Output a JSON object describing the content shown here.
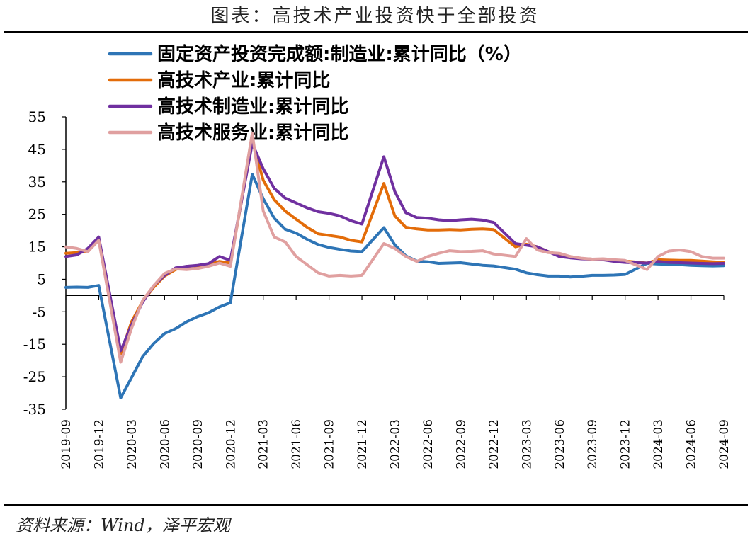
{
  "title": "图表：高技术产业投资快于全部投资",
  "source": "资料来源：Wind，泽平宏观",
  "chart_data": {
    "type": "line",
    "title": "图表：高技术产业投资快于全部投资",
    "xlabel": "",
    "ylabel": "",
    "ylim": [
      -35,
      55
    ],
    "yticks": [
      55,
      45,
      35,
      25,
      15,
      5,
      -5,
      -15,
      -25,
      -35
    ],
    "xtick_labels": [
      "2019-09",
      "2019-12",
      "2020-03",
      "2020-06",
      "2020-09",
      "2020-12",
      "2021-03",
      "2021-06",
      "2021-09",
      "2021-12",
      "2022-03",
      "2022-06",
      "2022-09",
      "2022-12",
      "2023-03",
      "2023-06",
      "2023-09",
      "2023-12",
      "2024-03",
      "2024-06",
      "2024-09"
    ],
    "legend_position": "top-left",
    "grid": false,
    "x": [
      "2019-09",
      "2019-10",
      "2019-11",
      "2019-12",
      "2020-01",
      "2020-02",
      "2020-03",
      "2020-04",
      "2020-05",
      "2020-06",
      "2020-07",
      "2020-08",
      "2020-09",
      "2020-10",
      "2020-11",
      "2020-12",
      "2021-01",
      "2021-02",
      "2021-03",
      "2021-04",
      "2021-05",
      "2021-06",
      "2021-07",
      "2021-08",
      "2021-09",
      "2021-10",
      "2021-11",
      "2021-12",
      "2022-01",
      "2022-02",
      "2022-03",
      "2022-04",
      "2022-05",
      "2022-06",
      "2022-07",
      "2022-08",
      "2022-09",
      "2022-10",
      "2022-11",
      "2022-12",
      "2023-01",
      "2023-02",
      "2023-03",
      "2023-04",
      "2023-05",
      "2023-06",
      "2023-07",
      "2023-08",
      "2023-09",
      "2023-10",
      "2023-11",
      "2023-12",
      "2024-01",
      "2024-02",
      "2024-03",
      "2024-04",
      "2024-05",
      "2024-06",
      "2024-07",
      "2024-08",
      "2024-09"
    ],
    "series": [
      {
        "name": "固定资产投资完成额:制造业:累计同比（%）",
        "color": "#2E75B6",
        "values": [
          2.5,
          2.6,
          2.5,
          3.1,
          null,
          -31.5,
          -25.2,
          -18.8,
          -14.8,
          -11.7,
          -10.2,
          -8.1,
          -6.5,
          -5.3,
          -3.5,
          -2.2,
          null,
          37.3,
          29.8,
          23.8,
          20.4,
          19.2,
          17.3,
          15.7,
          14.8,
          14.2,
          13.7,
          13.5,
          null,
          20.9,
          15.6,
          12.2,
          10.6,
          10.4,
          9.9,
          10.0,
          10.1,
          9.7,
          9.3,
          9.1,
          null,
          8.1,
          7.0,
          6.4,
          6.0,
          6.0,
          5.7,
          5.9,
          6.2,
          6.2,
          6.3,
          6.5,
          null,
          9.9,
          9.7,
          9.6,
          9.5,
          9.3,
          9.2,
          9.1,
          9.2
        ]
      },
      {
        "name": "高技术产业:累计同比",
        "color": "#E36C09",
        "values": [
          13.0,
          13.2,
          13.5,
          17.5,
          null,
          -18.0,
          -8.0,
          -1.8,
          2.5,
          6.0,
          8.0,
          9.0,
          9.2,
          9.5,
          10.5,
          10.0,
          null,
          47.5,
          35.5,
          29.5,
          26.0,
          23.5,
          21.0,
          19.0,
          18.5,
          18.0,
          17.0,
          16.5,
          null,
          34.5,
          24.5,
          21.0,
          20.5,
          20.2,
          20.2,
          20.3,
          20.2,
          20.4,
          20.5,
          20.3,
          null,
          15.0,
          15.8,
          15.0,
          13.5,
          12.5,
          12.0,
          11.4,
          11.2,
          11.0,
          10.9,
          10.6,
          null,
          10.0,
          11.0,
          10.9,
          10.8,
          10.8,
          10.6,
          10.4,
          10.2
        ]
      },
      {
        "name": "高技术制造业:累计同比",
        "color": "#7030A0",
        "values": [
          12.0,
          12.5,
          14.5,
          18.0,
          null,
          -17.0,
          -9.0,
          -2.0,
          3.0,
          6.2,
          8.5,
          9.0,
          9.3,
          9.8,
          12.0,
          10.8,
          null,
          46.8,
          39.0,
          33.0,
          30.0,
          28.5,
          27.0,
          25.8,
          25.3,
          24.5,
          23.0,
          22.0,
          null,
          42.7,
          32.0,
          25.5,
          24.0,
          23.8,
          23.3,
          23.0,
          23.3,
          23.5,
          23.2,
          22.5,
          null,
          16.0,
          15.5,
          15.0,
          13.5,
          12.0,
          11.6,
          11.3,
          11.2,
          11.0,
          10.5,
          10.2,
          null,
          10.0,
          10.5,
          10.2,
          10.1,
          10.0,
          9.9,
          9.8,
          9.9
        ]
      },
      {
        "name": "高技术服务业:累计同比",
        "color": "#E0A0A0",
        "values": [
          15.0,
          14.5,
          13.5,
          17.0,
          null,
          -20.5,
          -10.0,
          -1.5,
          3.0,
          6.8,
          8.2,
          8.0,
          8.3,
          9.0,
          10.0,
          9.0,
          null,
          50.0,
          26.0,
          18.0,
          16.5,
          12.0,
          9.5,
          7.0,
          6.0,
          6.2,
          6.0,
          6.2,
          null,
          16.0,
          14.5,
          12.0,
          10.5,
          12.0,
          13.0,
          13.8,
          13.5,
          13.6,
          13.8,
          12.8,
          null,
          12.0,
          17.5,
          14.0,
          13.2,
          13.0,
          12.0,
          11.5,
          11.2,
          11.3,
          11.0,
          10.8,
          null,
          8.0,
          12.0,
          13.7,
          14.0,
          13.5,
          12.0,
          11.5,
          11.5
        ]
      }
    ]
  }
}
